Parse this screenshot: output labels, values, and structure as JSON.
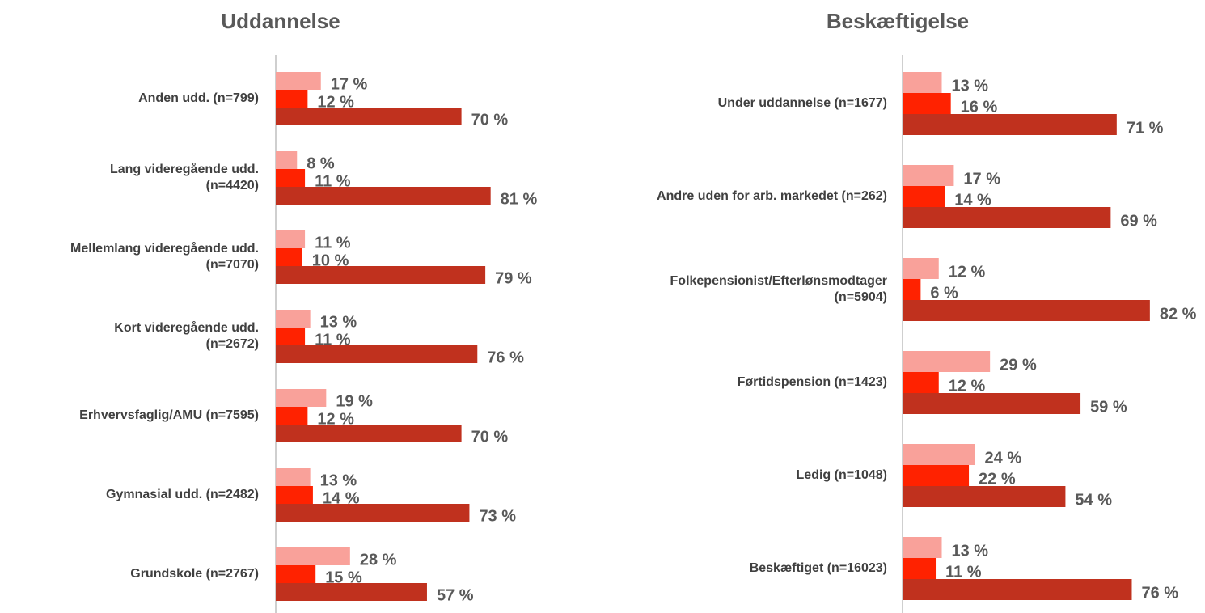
{
  "chart_data": [
    {
      "type": "bar",
      "orientation": "horizontal",
      "title": "Uddannelse",
      "categories": [
        "Anden udd. (n=799)",
        "Lang videregående udd.\n(n=4420)",
        "Mellemlang videregående udd.\n(n=7070)",
        "Kort videregående udd.\n(n=2672)",
        "Erhvervsfaglig/AMU (n=7595)",
        "Gymnasial udd. (n=2482)",
        "Grundskole (n=2767)"
      ],
      "xlim": [
        0,
        100
      ],
      "series": [
        {
          "color": "#f9a19a",
          "values": [
            17,
            8,
            11,
            13,
            19,
            13,
            28
          ],
          "value_labels": [
            "17 %",
            "8 %",
            "11 %",
            "13 %",
            "19 %",
            "13 %",
            "28 %"
          ]
        },
        {
          "color": "#ff2200",
          "values": [
            12,
            11,
            10,
            11,
            12,
            14,
            15
          ],
          "value_labels": [
            "12 %",
            "11 %",
            "10 %",
            "11 %",
            "12 %",
            "14 %",
            "15 %"
          ]
        },
        {
          "color": "#c0311e",
          "values": [
            70,
            81,
            79,
            76,
            70,
            73,
            57
          ],
          "value_labels": [
            "70 %",
            "81 %",
            "79 %",
            "76 %",
            "70 %",
            "73 %",
            "57 %"
          ]
        }
      ]
    },
    {
      "type": "bar",
      "orientation": "horizontal",
      "title": "Beskæftigelse",
      "categories": [
        "Under uddannelse (n=1677)",
        "Andre uden for arb. markedet (n=262)",
        "Folkepensionist/Efterlønsmodtager\n(n=5904)",
        "Førtidspension (n=1423)",
        "Ledig (n=1048)",
        "Beskæftiget (n=16023)"
      ],
      "xlim": [
        0,
        100
      ],
      "series": [
        {
          "color": "#f9a19a",
          "values": [
            13,
            17,
            12,
            29,
            24,
            13
          ],
          "value_labels": [
            "13 %",
            "17 %",
            "12 %",
            "29 %",
            "24 %",
            "13 %"
          ]
        },
        {
          "color": "#ff2200",
          "values": [
            16,
            14,
            6,
            12,
            22,
            11
          ],
          "value_labels": [
            "16 %",
            "14 %",
            "6 %",
            "12 %",
            "22 %",
            "11 %"
          ]
        },
        {
          "color": "#c0311e",
          "values": [
            71,
            69,
            82,
            59,
            54,
            76
          ],
          "value_labels": [
            "71 %",
            "69 %",
            "82 %",
            "59 %",
            "54 %",
            "76 %"
          ]
        }
      ]
    }
  ]
}
